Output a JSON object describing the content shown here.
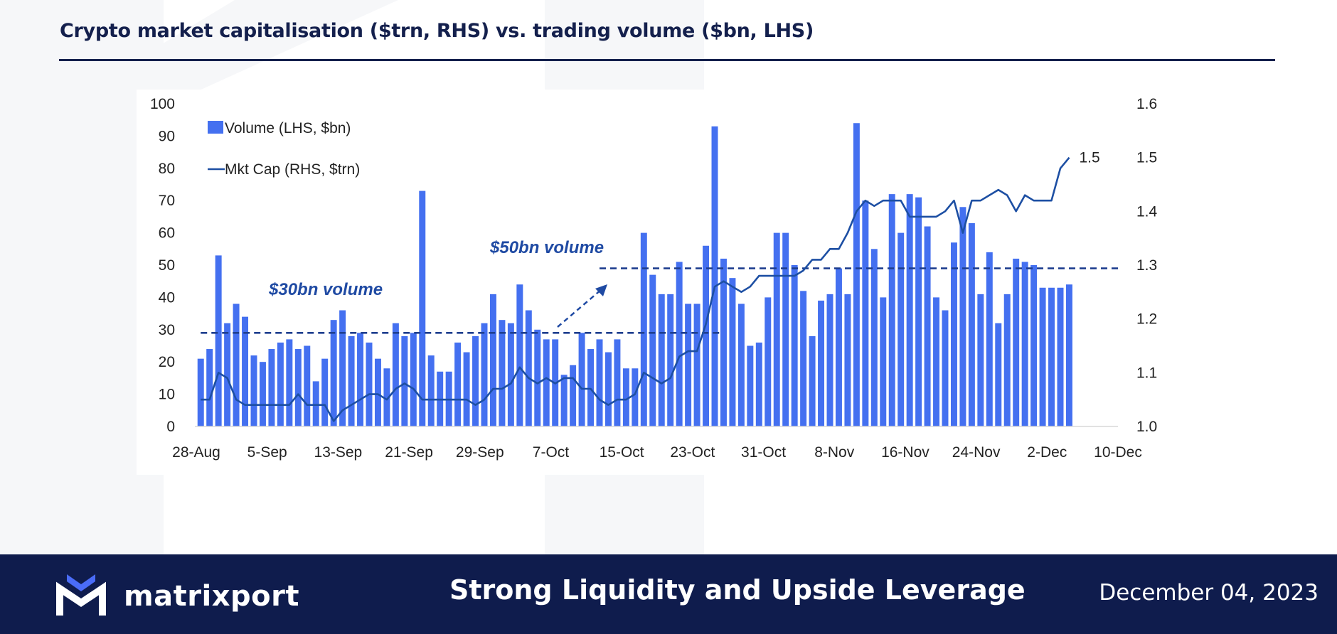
{
  "header": {
    "title": "Crypto market capitalisation ($trn, RHS) vs. trading volume ($bn, LHS)"
  },
  "footer": {
    "brand": "matrixport",
    "title": "Strong Liquidity and Upside Leverage",
    "date": "December 04, 2023"
  },
  "colors": {
    "navy": "#14204d",
    "footer_bg": "#0f1c4d",
    "bar": "#4470f0",
    "line": "#1d4fa3",
    "logo_accent": "#4a6cf7"
  },
  "chart_data": {
    "type": "bar+line",
    "x_ticks": [
      "28-Aug",
      "5-Sep",
      "13-Sep",
      "21-Sep",
      "29-Sep",
      "7-Oct",
      "15-Oct",
      "23-Oct",
      "31-Oct",
      "8-Nov",
      "16-Nov",
      "24-Nov",
      "2-Dec",
      "10-Dec"
    ],
    "y_left_ticks": [
      "0",
      "10",
      "20",
      "30",
      "40",
      "50",
      "60",
      "70",
      "80",
      "90",
      "100"
    ],
    "y_right_ticks": [
      "1.0",
      "1.1",
      "1.2",
      "1.3",
      "1.4",
      "1.5",
      "1.6"
    ],
    "y_left_range": [
      0,
      100
    ],
    "y_right_range": [
      1.0,
      1.6
    ],
    "x_range_days": [
      0,
      104
    ],
    "legend": {
      "position": "top-left",
      "volume": "Volume (LHS, $bn)",
      "mktcap": "Mkt Cap (RHS, $trn)"
    },
    "series": [
      {
        "name": "Volume (LHS, $bn)",
        "axis": "left",
        "kind": "bar",
        "values": [
          21,
          24,
          53,
          32,
          38,
          34,
          22,
          20,
          24,
          26,
          27,
          24,
          25,
          14,
          21,
          33,
          36,
          28,
          29,
          26,
          21,
          18,
          32,
          28,
          29,
          73,
          22,
          17,
          17,
          26,
          23,
          28,
          32,
          41,
          33,
          32,
          44,
          36,
          30,
          27,
          27,
          16,
          19,
          29,
          24,
          27,
          23,
          27,
          18,
          18,
          60,
          47,
          41,
          41,
          51,
          38,
          38,
          56,
          93,
          52,
          46,
          38,
          25,
          26,
          40,
          60,
          60,
          50,
          42,
          28,
          39,
          41,
          49,
          41,
          94,
          70,
          55,
          40,
          72,
          60,
          72,
          71,
          62,
          40,
          36,
          57,
          68,
          63,
          41,
          54,
          32,
          41,
          52,
          51,
          50,
          43,
          43,
          43,
          44
        ]
      },
      {
        "name": "Mkt Cap (RHS, $trn)",
        "axis": "right",
        "kind": "line",
        "values": [
          1.05,
          1.05,
          1.1,
          1.09,
          1.05,
          1.04,
          1.04,
          1.04,
          1.04,
          1.04,
          1.04,
          1.06,
          1.04,
          1.04,
          1.04,
          1.01,
          1.03,
          1.04,
          1.05,
          1.06,
          1.06,
          1.05,
          1.07,
          1.08,
          1.07,
          1.05,
          1.05,
          1.05,
          1.05,
          1.05,
          1.05,
          1.04,
          1.05,
          1.07,
          1.07,
          1.08,
          1.11,
          1.09,
          1.08,
          1.09,
          1.08,
          1.09,
          1.09,
          1.07,
          1.07,
          1.05,
          1.04,
          1.05,
          1.05,
          1.06,
          1.1,
          1.09,
          1.08,
          1.09,
          1.13,
          1.14,
          1.14,
          1.19,
          1.26,
          1.27,
          1.26,
          1.25,
          1.26,
          1.28,
          1.28,
          1.28,
          1.28,
          1.28,
          1.29,
          1.31,
          1.31,
          1.33,
          1.33,
          1.36,
          1.4,
          1.42,
          1.41,
          1.42,
          1.42,
          1.42,
          1.39,
          1.39,
          1.39,
          1.39,
          1.4,
          1.42,
          1.36,
          1.42,
          1.42,
          1.43,
          1.44,
          1.43,
          1.4,
          1.43,
          1.42,
          1.42,
          1.42,
          1.48,
          1.5
        ]
      }
    ],
    "reference_lines": [
      {
        "label": "$30bn volume",
        "value": 29,
        "from_day": 0,
        "to_day": 59
      },
      {
        "label": "$50bn volume",
        "value": 49,
        "from_day": 45,
        "to_day": 104
      }
    ],
    "end_label": "1.5"
  }
}
